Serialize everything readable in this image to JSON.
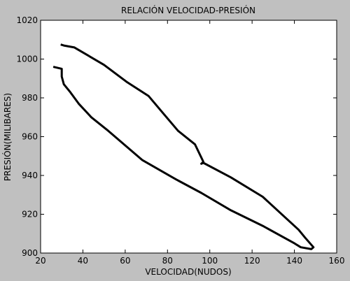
{
  "chart_data": {
    "type": "line",
    "title": "RELACIÓN VELOCIDAD-PRESIÓN",
    "xlabel": "VELOCIDAD(NUDOS)",
    "ylabel": "PRESIÓN(MILIBARES)",
    "xlim": [
      20,
      160
    ],
    "ylim": [
      900,
      1020
    ],
    "xticks": [
      20,
      40,
      60,
      80,
      100,
      120,
      140,
      160
    ],
    "yticks": [
      900,
      920,
      940,
      960,
      980,
      1000,
      1020
    ],
    "grid": false,
    "colors": {
      "background": "#c0c0c0",
      "plot_area": "#ffffff",
      "line": "#000000"
    },
    "series": [
      {
        "color": "#000000",
        "x": [
          29.5,
          31,
          36,
          50,
          61,
          71,
          78,
          85,
          93,
          97,
          96,
          97,
          110,
          125,
          135,
          142,
          145,
          149,
          148,
          143,
          140,
          125,
          110,
          96,
          84,
          68,
          52,
          44,
          38,
          34,
          31,
          30,
          30,
          26
        ],
        "y": [
          1007.5,
          1007,
          1006,
          997,
          988,
          981,
          972,
          963,
          956,
          947,
          946,
          946.5,
          939,
          929,
          919,
          912,
          908,
          903,
          902,
          903,
          905,
          914,
          922,
          931,
          938,
          948,
          963,
          970,
          977,
          983,
          987,
          991,
          995,
          996
        ]
      }
    ]
  }
}
